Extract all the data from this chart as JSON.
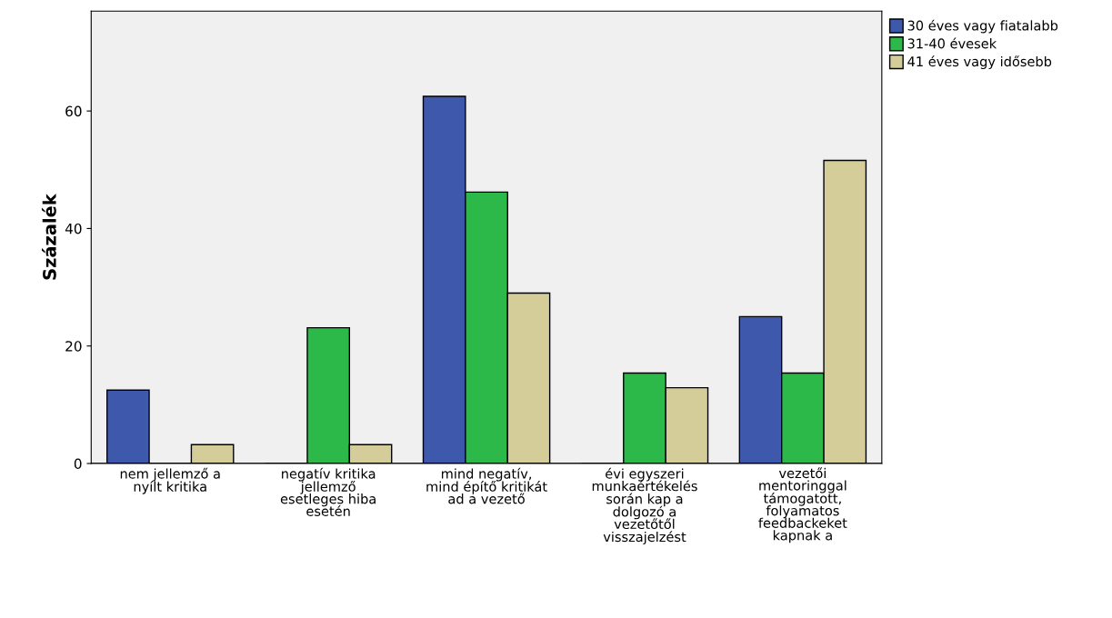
{
  "chart_data": {
    "type": "bar",
    "ylabel": "Százalék",
    "categories": [
      "nem jellemző a\nnyílt kritika",
      "negatív kritika\njellemző\nesetleges hiba\nesetén",
      "mind negatív,\nmind építő kritikát\nad a vezető",
      "évi egyszeri\nmunkaértékelés\nsorán kap a\ndolgozó a\nvezetőtől\nvisszajelzést",
      "vezetői\nmentoringgal\ntámogatott,\nfolyamatos\nfeedbackeket\nkapnak a"
    ],
    "series": [
      {
        "name": "30 éves vagy fiatalabb",
        "color": "#3e58ac",
        "values": [
          12.5,
          0,
          62.5,
          0,
          25.0
        ]
      },
      {
        "name": "31-40 évesek",
        "color": "#2db84a",
        "values": [
          0,
          23.1,
          46.2,
          15.4,
          15.4
        ]
      },
      {
        "name": "41 éves vagy idősebb",
        "color": "#d4cc99",
        "values": [
          3.2,
          3.2,
          29.0,
          12.9,
          51.6
        ]
      }
    ],
    "ylim": [
      0,
      77
    ],
    "yticks": [
      0,
      20,
      40,
      60
    ],
    "grid": false,
    "legend": "top right"
  }
}
